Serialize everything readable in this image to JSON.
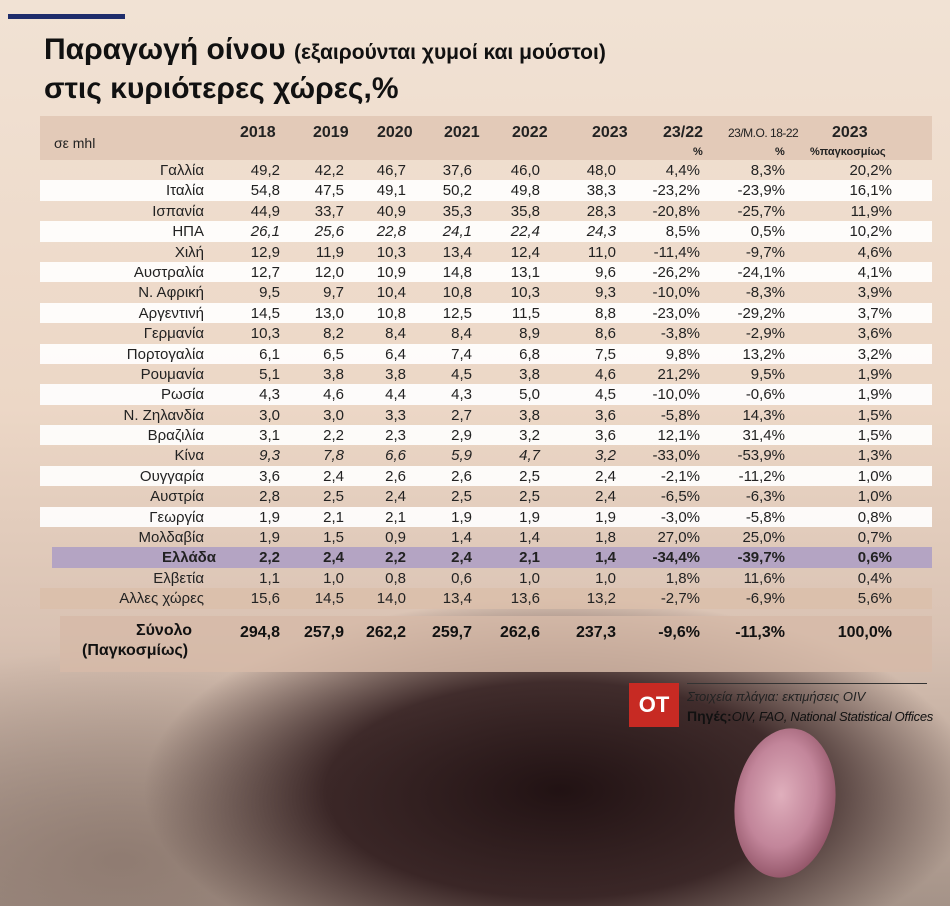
{
  "title": {
    "main": "Παραγωγή οίνου",
    "paren": "(εξαιρούνται χυμοί και μούστοι)",
    "line2": "στις κυριότερες χώρες,%"
  },
  "header": {
    "unit": "σε mhl",
    "y2018": "2018",
    "y2019": "2019",
    "y2020": "2020",
    "y2021": "2021",
    "y2022": "2022",
    "y2023": "2023",
    "chg": "23/22",
    "chg_sub": "%",
    "avg": "23/Μ.Ο. 18-22",
    "avg_sub": "%",
    "share": "2023",
    "share_sub": "%παγκοσμίως"
  },
  "chart_data": {
    "type": "table",
    "columns": [
      "2018",
      "2019",
      "2020",
      "2021",
      "2022",
      "2023",
      "23/22 %",
      "23/Μ.Ο. 18-22 %",
      "2023 %παγκοσμίως"
    ],
    "unit": "σε mhl",
    "rows": [
      {
        "country": "Γαλλία",
        "values": [
          "49,2",
          "42,2",
          "46,7",
          "37,6",
          "46,0",
          "48,0",
          "4,4%",
          "8,3%",
          "20,2%"
        ],
        "italic_years": false
      },
      {
        "country": "Ιταλία",
        "values": [
          "54,8",
          "47,5",
          "49,1",
          "50,2",
          "49,8",
          "38,3",
          "-23,2%",
          "-23,9%",
          "16,1%"
        ],
        "italic_years": false
      },
      {
        "country": "Ισπανία",
        "values": [
          "44,9",
          "33,7",
          "40,9",
          "35,3",
          "35,8",
          "28,3",
          "-20,8%",
          "-25,7%",
          "11,9%"
        ],
        "italic_years": false
      },
      {
        "country": "ΗΠΑ",
        "values": [
          "26,1",
          "25,6",
          "22,8",
          "24,1",
          "22,4",
          "24,3",
          "8,5%",
          "0,5%",
          "10,2%"
        ],
        "italic_years": true
      },
      {
        "country": "Χιλή",
        "values": [
          "12,9",
          "11,9",
          "10,3",
          "13,4",
          "12,4",
          "11,0",
          "-11,4%",
          "-9,7%",
          "4,6%"
        ],
        "italic_years": false
      },
      {
        "country": "Αυστραλία",
        "values": [
          "12,7",
          "12,0",
          "10,9",
          "14,8",
          "13,1",
          "9,6",
          "-26,2%",
          "-24,1%",
          "4,1%"
        ],
        "italic_years": false
      },
      {
        "country": "Ν. Αφρική",
        "values": [
          "9,5",
          "9,7",
          "10,4",
          "10,8",
          "10,3",
          "9,3",
          "-10,0%",
          "-8,3%",
          "3,9%"
        ],
        "italic_years": false
      },
      {
        "country": "Αργεντινή",
        "values": [
          "14,5",
          "13,0",
          "10,8",
          "12,5",
          "11,5",
          "8,8",
          "-23,0%",
          "-29,2%",
          "3,7%"
        ],
        "italic_years": false
      },
      {
        "country": "Γερμανία",
        "values": [
          "10,3",
          "8,2",
          "8,4",
          "8,4",
          "8,9",
          "8,6",
          "-3,8%",
          "-2,9%",
          "3,6%"
        ],
        "italic_years": false
      },
      {
        "country": "Πορτογαλία",
        "values": [
          "6,1",
          "6,5",
          "6,4",
          "7,4",
          "6,8",
          "7,5",
          "9,8%",
          "13,2%",
          "3,2%"
        ],
        "italic_years": false
      },
      {
        "country": "Ρουμανία",
        "values": [
          "5,1",
          "3,8",
          "3,8",
          "4,5",
          "3,8",
          "4,6",
          "21,2%",
          "9,5%",
          "1,9%"
        ],
        "italic_years": false
      },
      {
        "country": "Ρωσία",
        "values": [
          "4,3",
          "4,6",
          "4,4",
          "4,3",
          "5,0",
          "4,5",
          "-10,0%",
          "-0,6%",
          "1,9%"
        ],
        "italic_years": false
      },
      {
        "country": "Ν. Ζηλανδία",
        "values": [
          "3,0",
          "3,0",
          "3,3",
          "2,7",
          "3,8",
          "3,6",
          "-5,8%",
          "14,3%",
          "1,5%"
        ],
        "italic_years": false
      },
      {
        "country": "Βραζιλία",
        "values": [
          "3,1",
          "2,2",
          "2,3",
          "2,9",
          "3,2",
          "3,6",
          "12,1%",
          "31,4%",
          "1,5%"
        ],
        "italic_years": false
      },
      {
        "country": "Κίνα",
        "values": [
          "9,3",
          "7,8",
          "6,6",
          "5,9",
          "4,7",
          "3,2",
          "-33,0%",
          "-53,9%",
          "1,3%"
        ],
        "italic_years": true
      },
      {
        "country": "Ουγγαρία",
        "values": [
          "3,6",
          "2,4",
          "2,6",
          "2,6",
          "2,5",
          "2,4",
          "-2,1%",
          "-11,2%",
          "1,0%"
        ],
        "italic_years": false
      },
      {
        "country": "Αυστρία",
        "values": [
          "2,8",
          "2,5",
          "2,4",
          "2,5",
          "2,5",
          "2,4",
          "-6,5%",
          "-6,3%",
          "1,0%"
        ],
        "italic_years": false
      },
      {
        "country": "Γεωργία",
        "values": [
          "1,9",
          "2,1",
          "2,1",
          "1,9",
          "1,9",
          "1,9",
          "-3,0%",
          "-5,8%",
          "0,8%"
        ],
        "italic_years": false
      },
      {
        "country": "Μολδαβία",
        "values": [
          "1,9",
          "1,5",
          "0,9",
          "1,4",
          "1,4",
          "1,8",
          "27,0%",
          "25,0%",
          "0,7%"
        ],
        "italic_years": false
      },
      {
        "country": "Ελλάδα",
        "values": [
          "2,2",
          "2,4",
          "2,2",
          "2,4",
          "2,1",
          "1,4",
          "-34,4%",
          "-39,7%",
          "0,6%"
        ],
        "italic_years": false,
        "highlight": true
      },
      {
        "country": "Ελβετία",
        "values": [
          "1,1",
          "1,0",
          "0,8",
          "0,6",
          "1,0",
          "1,0",
          "1,8%",
          "11,6%",
          "0,4%"
        ],
        "italic_years": false
      },
      {
        "country": "Αλλες χώρες",
        "values": [
          "15,6",
          "14,5",
          "14,0",
          "13,4",
          "13,6",
          "13,2",
          "-2,7%",
          "-6,9%",
          "5,6%"
        ],
        "italic_years": false
      }
    ],
    "total": {
      "label_line1": "Σύνολο",
      "label_line2": "(Παγκοσμίως)",
      "values": [
        "294,8",
        "257,9",
        "262,2",
        "259,7",
        "262,6",
        "237,3",
        "-9,6%",
        "-11,3%",
        "100,0%"
      ]
    },
    "colors": {
      "highlight": "#afa0c4",
      "header": "#e0c4b1",
      "logo": "#c72a23",
      "accent_bar": "#1f2d6b"
    }
  },
  "source": {
    "logo": "ΟΤ",
    "note": "Στοιχεία πλάγια: εκτιμήσεις OIV",
    "label": "Πηγές:",
    "value": "OIV, FAO, National Statistical Offices"
  }
}
